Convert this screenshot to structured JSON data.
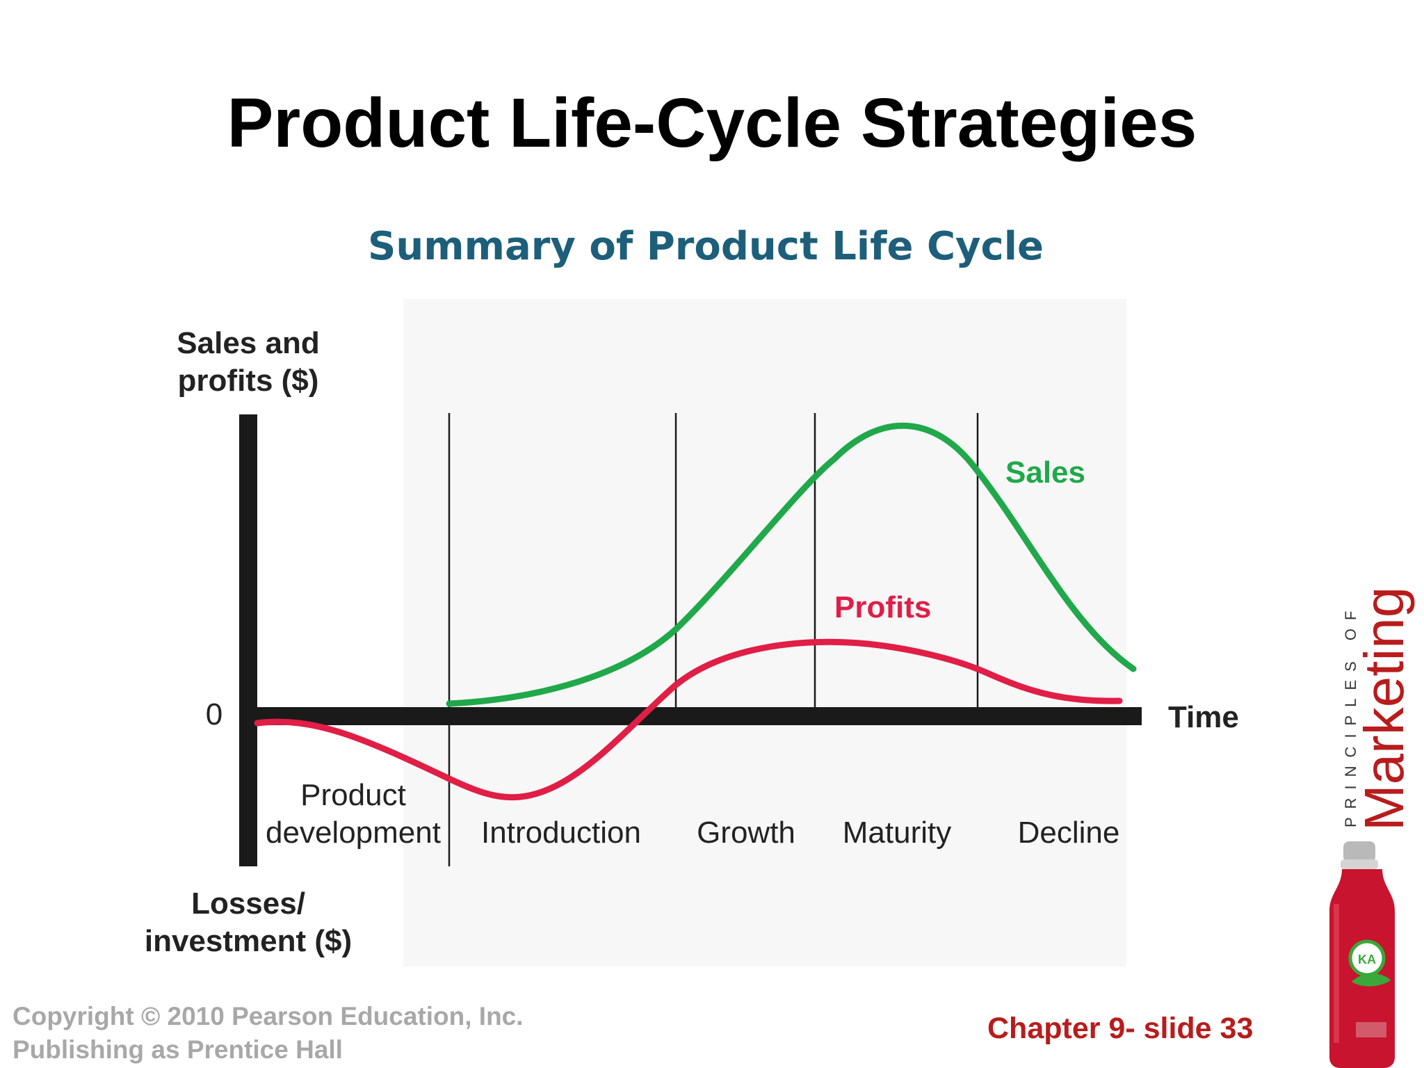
{
  "slide": {
    "title": "Product Life-Cycle Strategies",
    "diagram_title": "Summary of Product Life Cycle"
  },
  "diagram": {
    "y_axis_top_label": [
      "Sales and",
      "profits ($)"
    ],
    "y_axis_bottom_label": [
      "Losses/",
      "investment ($)"
    ],
    "zero_label": "0",
    "x_axis_label": "Time",
    "stages": [
      {
        "label": [
          "Product",
          "development"
        ]
      },
      {
        "label": [
          "Introduction"
        ]
      },
      {
        "label": [
          "Growth"
        ]
      },
      {
        "label": [
          "Maturity"
        ]
      },
      {
        "label": [
          "Decline"
        ]
      }
    ],
    "curves": [
      {
        "name": "Sales",
        "color": "#20a84a"
      },
      {
        "name": "Profits",
        "color": "#e01e46"
      }
    ]
  },
  "branding": {
    "series_prefix": "PRINCIPLES OF",
    "series_name": "Marketing",
    "logo": "bottle-image"
  },
  "footer": {
    "copyright_line1": "Copyright © 2010 Pearson Education, Inc.",
    "copyright_line2": "Publishing as Prentice Hall",
    "chapter": "Chapter 9- slide 33"
  }
}
